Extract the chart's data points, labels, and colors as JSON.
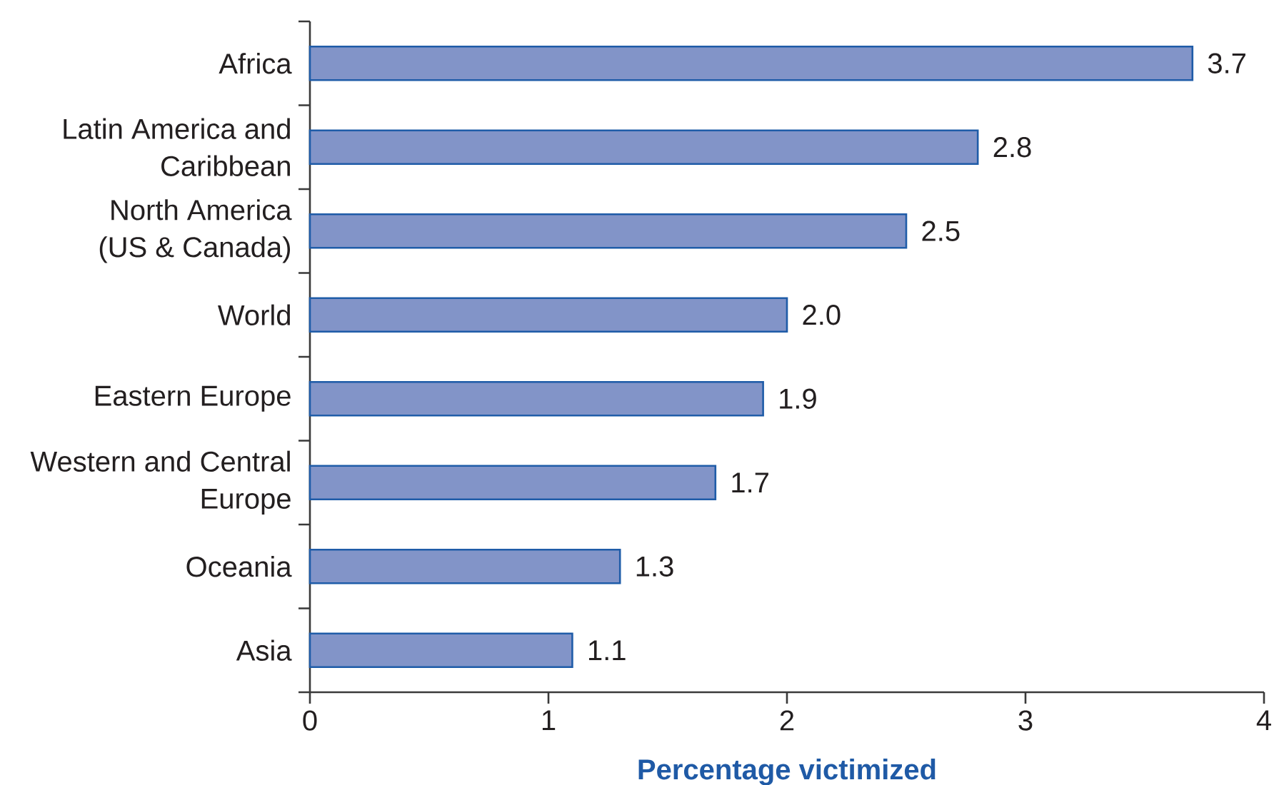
{
  "chart_data": {
    "type": "bar",
    "orientation": "horizontal",
    "categories": [
      "Africa",
      "Latin America and\nCaribbean",
      "North America\n(US & Canada)",
      "World",
      "Eastern Europe",
      "Western and Central\nEurope",
      "Oceania",
      "Asia"
    ],
    "values": [
      3.7,
      2.8,
      2.5,
      2.0,
      1.9,
      1.7,
      1.3,
      1.1
    ],
    "value_labels": [
      "3.7",
      "2.8",
      "2.5",
      "2.0",
      "1.9",
      "1.7",
      "1.3",
      "1.1"
    ],
    "color": "#8294c8",
    "xlabel": "Percentage victimized",
    "xlim": [
      0,
      4
    ],
    "xticks": [
      0,
      1,
      2,
      3,
      4
    ]
  }
}
